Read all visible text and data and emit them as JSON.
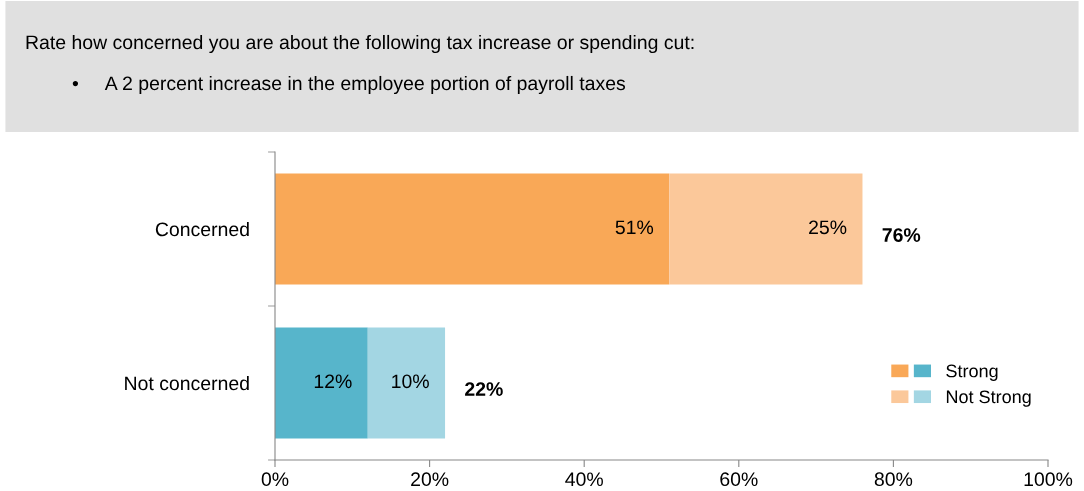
{
  "chart_data": {
    "type": "bar",
    "orientation": "horizontal",
    "stacked": true,
    "title": "Rate how concerned you are about the following tax increase or spending cut:",
    "subtitle": "•     A 2 percent increase in the employee portion of payroll taxes",
    "categories": [
      "Concerned",
      "Not concerned"
    ],
    "series": [
      {
        "name": "Strong",
        "values": [
          51,
          12
        ],
        "colors": [
          "#f9a857",
          "#57b5cb"
        ],
        "value_labels": [
          "51%",
          "12%"
        ]
      },
      {
        "name": "Not Strong",
        "values": [
          25,
          10
        ],
        "colors": [
          "#fbc89a",
          "#a3d6e3"
        ],
        "value_labels": [
          "25%",
          "10%"
        ]
      }
    ],
    "totals": [
      "76%",
      "22%"
    ],
    "xlim": [
      0,
      100
    ],
    "xticks": [
      {
        "value": 0,
        "label": "0%"
      },
      {
        "value": 20,
        "label": "20%"
      },
      {
        "value": 40,
        "label": "40%"
      },
      {
        "value": 60,
        "label": "60%"
      },
      {
        "value": 80,
        "label": "80%"
      },
      {
        "value": 100,
        "label": "100%"
      }
    ],
    "grid": false,
    "legend": "bottom right"
  }
}
